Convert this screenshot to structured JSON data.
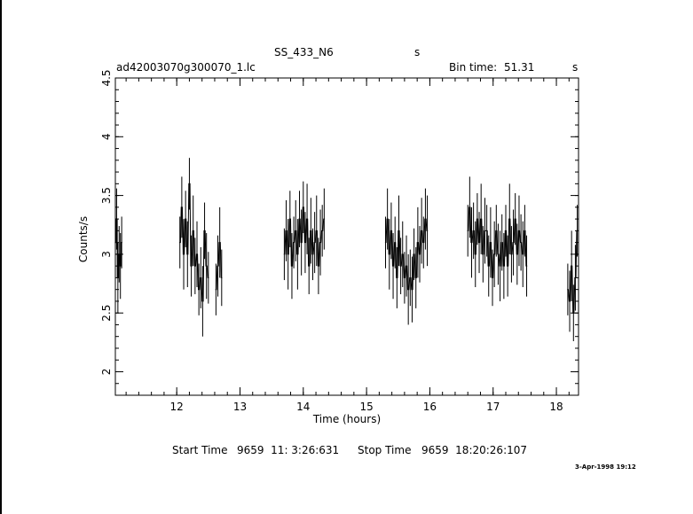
{
  "header": {
    "title": "SS_433_N6",
    "title_suffix": "s",
    "file_name": "ad42003070g300070_1.lc",
    "bin_time_label": "Bin time:",
    "bin_time_value": "51.31",
    "bin_time_unit": "s"
  },
  "footer": {
    "start_label": "Start Time",
    "start_value": "9659  11: 3:26:631",
    "stop_label": "Stop Time",
    "stop_value": "9659  18:20:26:107",
    "date_stamp": "3-Apr-1998 19:12"
  },
  "colors": {
    "axis": "#000000",
    "data": "#000000",
    "background": "#ffffff"
  },
  "chart_data": {
    "type": "line",
    "xlabel": "Time (hours)",
    "ylabel": "Counts/s",
    "xlim": [
      11.03,
      18.35
    ],
    "ylim": [
      1.8,
      4.5
    ],
    "x_ticks": [
      12,
      13,
      14,
      15,
      16,
      17,
      18
    ],
    "y_ticks": [
      2,
      2.5,
      3,
      3.5,
      4,
      4.5
    ],
    "grid": false,
    "series": [
      {
        "segments": [
          {
            "x": [
              11.03,
              11.05,
              11.07,
              11.09,
              11.11,
              11.13
            ],
            "y": [
              3.1,
              3.3,
              2.8,
              3.0,
              2.9,
              3.1
            ]
          },
          {
            "x": [
              12.05,
              12.08,
              12.11,
              12.14,
              12.17,
              12.2,
              12.23,
              12.26,
              12.29,
              12.32,
              12.35,
              12.38,
              12.41,
              12.44,
              12.47,
              12.5
            ],
            "y": [
              3.1,
              3.4,
              3.0,
              3.3,
              3.0,
              3.6,
              2.9,
              3.2,
              2.9,
              3.0,
              2.7,
              2.8,
              2.6,
              3.2,
              2.9,
              2.8
            ]
          },
          {
            "x": [
              12.62,
              12.65,
              12.68,
              12.71
            ],
            "y": [
              2.7,
              2.9,
              3.1,
              2.8
            ]
          },
          {
            "x": [
              13.7,
              13.73,
              13.76,
              13.79,
              13.82,
              13.85,
              13.88,
              13.91,
              13.94,
              13.97,
              14.0,
              14.03,
              14.06,
              14.09,
              14.12,
              14.15,
              14.18,
              14.21,
              14.24,
              14.27,
              14.3,
              14.33
            ],
            "y": [
              3.0,
              3.2,
              3.0,
              3.3,
              2.9,
              3.1,
              3.2,
              3.0,
              3.3,
              3.1,
              3.4,
              3.1,
              3.3,
              2.9,
              3.2,
              3.0,
              3.1,
              3.2,
              2.9,
              3.1,
              3.2,
              3.3
            ]
          },
          {
            "x": [
              15.3,
              15.33,
              15.36,
              15.39,
              15.42,
              15.45,
              15.48,
              15.51,
              15.54,
              15.57,
              15.6,
              15.63,
              15.66,
              15.69,
              15.72,
              15.75,
              15.78,
              15.81,
              15.84,
              15.87,
              15.9,
              15.93,
              15.96
            ],
            "y": [
              3.1,
              3.3,
              3.0,
              3.2,
              2.9,
              3.1,
              2.8,
              3.2,
              2.9,
              3.0,
              2.8,
              2.9,
              2.7,
              2.8,
              2.7,
              3.0,
              2.8,
              3.1,
              3.0,
              3.2,
              3.1,
              3.3,
              3.2
            ]
          },
          {
            "x": [
              16.6,
              16.63,
              16.66,
              16.69,
              16.72,
              16.75,
              16.78,
              16.81,
              16.84,
              16.87,
              16.9,
              16.93,
              16.96,
              16.99,
              17.02,
              17.05,
              17.08,
              17.11,
              17.14,
              17.17,
              17.2,
              17.23,
              17.26,
              17.29,
              17.32,
              17.35,
              17.38,
              17.41,
              17.44,
              17.47,
              17.5,
              17.53
            ],
            "y": [
              3.2,
              3.4,
              3.1,
              3.2,
              3.0,
              3.3,
              3.1,
              3.3,
              3.0,
              3.2,
              3.2,
              2.9,
              3.1,
              2.8,
              3.0,
              3.2,
              3.0,
              2.9,
              3.1,
              2.9,
              3.2,
              2.9,
              3.3,
              3.0,
              3.1,
              3.3,
              3.0,
              3.2,
              3.1,
              3.0,
              3.2,
              2.9
            ]
          },
          {
            "x": [
              18.18,
              18.21,
              18.24,
              18.27,
              18.3,
              18.33
            ],
            "y": [
              2.7,
              2.6,
              2.9,
              2.5,
              2.8,
              3.2
            ]
          }
        ]
      }
    ]
  }
}
